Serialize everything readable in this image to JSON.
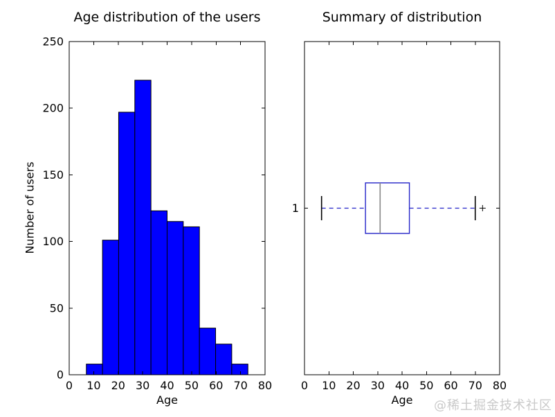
{
  "figure": {
    "watermark": "@稀土掘金技术社区"
  },
  "chart_data": [
    {
      "type": "bar",
      "subtype": "histogram",
      "title": "Age distribution of the users",
      "xlabel": "Age",
      "ylabel": "Number of users",
      "xlim": [
        0,
        80
      ],
      "ylim": [
        0,
        250
      ],
      "xticks": [
        "0",
        "10",
        "20",
        "30",
        "40",
        "50",
        "60",
        "70",
        "80"
      ],
      "yticks": [
        "0",
        "50",
        "100",
        "150",
        "200",
        "250"
      ],
      "bin_edges": [
        7,
        13.6,
        20.2,
        26.8,
        33.4,
        40,
        46.6,
        53.2,
        59.8,
        66.4,
        73
      ],
      "values": [
        8,
        101,
        197,
        221,
        123,
        115,
        111,
        35,
        23,
        8
      ],
      "grid": false,
      "bar_color": "#0000ff",
      "bar_edge_color": "#000000"
    },
    {
      "type": "boxplot",
      "title": "Summary of distribution",
      "xlabel": "Age",
      "ylabel": "",
      "xlim": [
        0,
        80
      ],
      "xticks": [
        "0",
        "10",
        "20",
        "30",
        "40",
        "50",
        "60",
        "70",
        "80"
      ],
      "ytick_labels": [
        "1"
      ],
      "grid": false,
      "stats": {
        "whisker_low": 7,
        "q1": 25,
        "median": 31,
        "q3": 43,
        "whisker_high": 70,
        "fliers": [
          73
        ]
      },
      "box_color": "#2323c8",
      "whisker_color": "#2323c8",
      "cap_color": "#000000",
      "median_color": "#888888",
      "flier_color": "#000000",
      "frame_color": "#000000"
    }
  ]
}
